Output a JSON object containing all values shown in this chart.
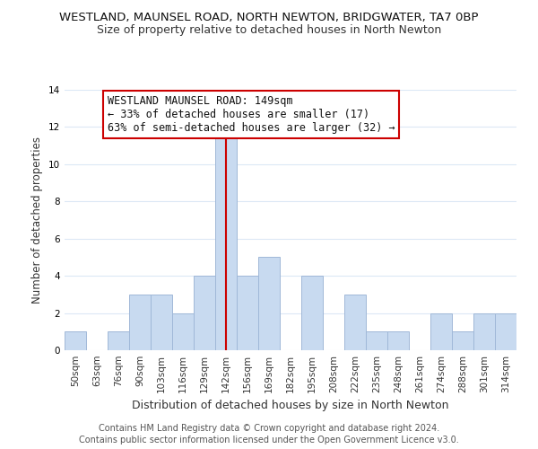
{
  "title": "WESTLAND, MAUNSEL ROAD, NORTH NEWTON, BRIDGWATER, TA7 0BP",
  "subtitle": "Size of property relative to detached houses in North Newton",
  "xlabel": "Distribution of detached houses by size in North Newton",
  "ylabel": "Number of detached properties",
  "bin_labels": [
    "50sqm",
    "63sqm",
    "76sqm",
    "90sqm",
    "103sqm",
    "116sqm",
    "129sqm",
    "142sqm",
    "156sqm",
    "169sqm",
    "182sqm",
    "195sqm",
    "208sqm",
    "222sqm",
    "235sqm",
    "248sqm",
    "261sqm",
    "274sqm",
    "288sqm",
    "301sqm",
    "314sqm"
  ],
  "bar_heights": [
    1,
    0,
    1,
    3,
    3,
    2,
    4,
    12,
    4,
    5,
    0,
    4,
    0,
    3,
    1,
    1,
    0,
    2,
    1,
    2,
    2
  ],
  "bar_color": "#c8daf0",
  "bar_edge_color": "#a0b8d8",
  "highlight_index": 7,
  "highlight_line_color": "#cc0000",
  "annotation_box_text": "WESTLAND MAUNSEL ROAD: 149sqm\n← 33% of detached houses are smaller (17)\n63% of semi-detached houses are larger (32) →",
  "annotation_box_edge_color": "#cc0000",
  "annotation_box_face_color": "#ffffff",
  "ylim": [
    0,
    14
  ],
  "yticks": [
    0,
    2,
    4,
    6,
    8,
    10,
    12,
    14
  ],
  "footer_line1": "Contains HM Land Registry data © Crown copyright and database right 2024.",
  "footer_line2": "Contains public sector information licensed under the Open Government Licence v3.0.",
  "title_fontsize": 9.5,
  "subtitle_fontsize": 9.0,
  "xlabel_fontsize": 9.0,
  "ylabel_fontsize": 8.5,
  "tick_fontsize": 7.5,
  "footer_fontsize": 7.0,
  "annotation_fontsize": 8.5,
  "grid_color": "#dce8f5",
  "background_color": "#ffffff"
}
